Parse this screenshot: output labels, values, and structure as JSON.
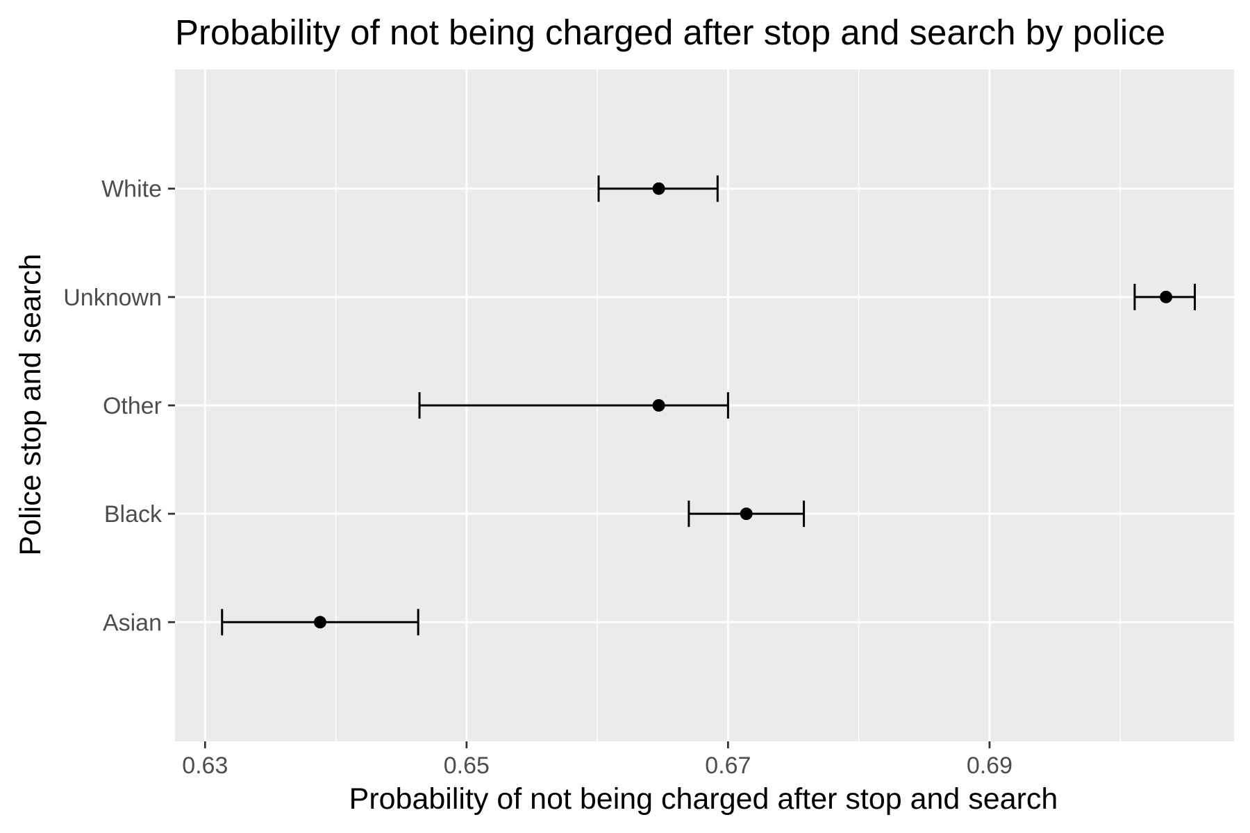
{
  "chart_data": {
    "type": "errorbar",
    "title": "Probability of not being charged after stop and search by police",
    "xlabel": "Probability of not being charged after stop and search",
    "ylabel": "Police stop and search",
    "xlim": [
      0.6277,
      0.7087
    ],
    "x_ticks": [
      {
        "value": 0.63,
        "label": "0.63"
      },
      {
        "value": 0.65,
        "label": "0.65"
      },
      {
        "value": 0.67,
        "label": "0.67"
      },
      {
        "value": 0.69,
        "label": "0.69"
      }
    ],
    "x_minor_ticks": [
      0.64,
      0.66,
      0.68,
      0.7
    ],
    "categories": [
      "Asian",
      "Black",
      "Other",
      "Unknown",
      "White"
    ],
    "estimates": [
      0.6388,
      0.6714,
      0.6647,
      0.7035,
      0.6647
    ],
    "lower": [
      0.6313,
      0.667,
      0.6464,
      0.7011,
      0.6601
    ],
    "upper": [
      0.6463,
      0.6758,
      0.67,
      0.7057,
      0.6692
    ],
    "grid": true,
    "legend": "none",
    "colors": {
      "panel_background": "#ebebeb",
      "grid_line": "#ffffff",
      "mark": "#000000",
      "tick_label": "#4d4d4d",
      "tick_mark": "#333333"
    }
  }
}
